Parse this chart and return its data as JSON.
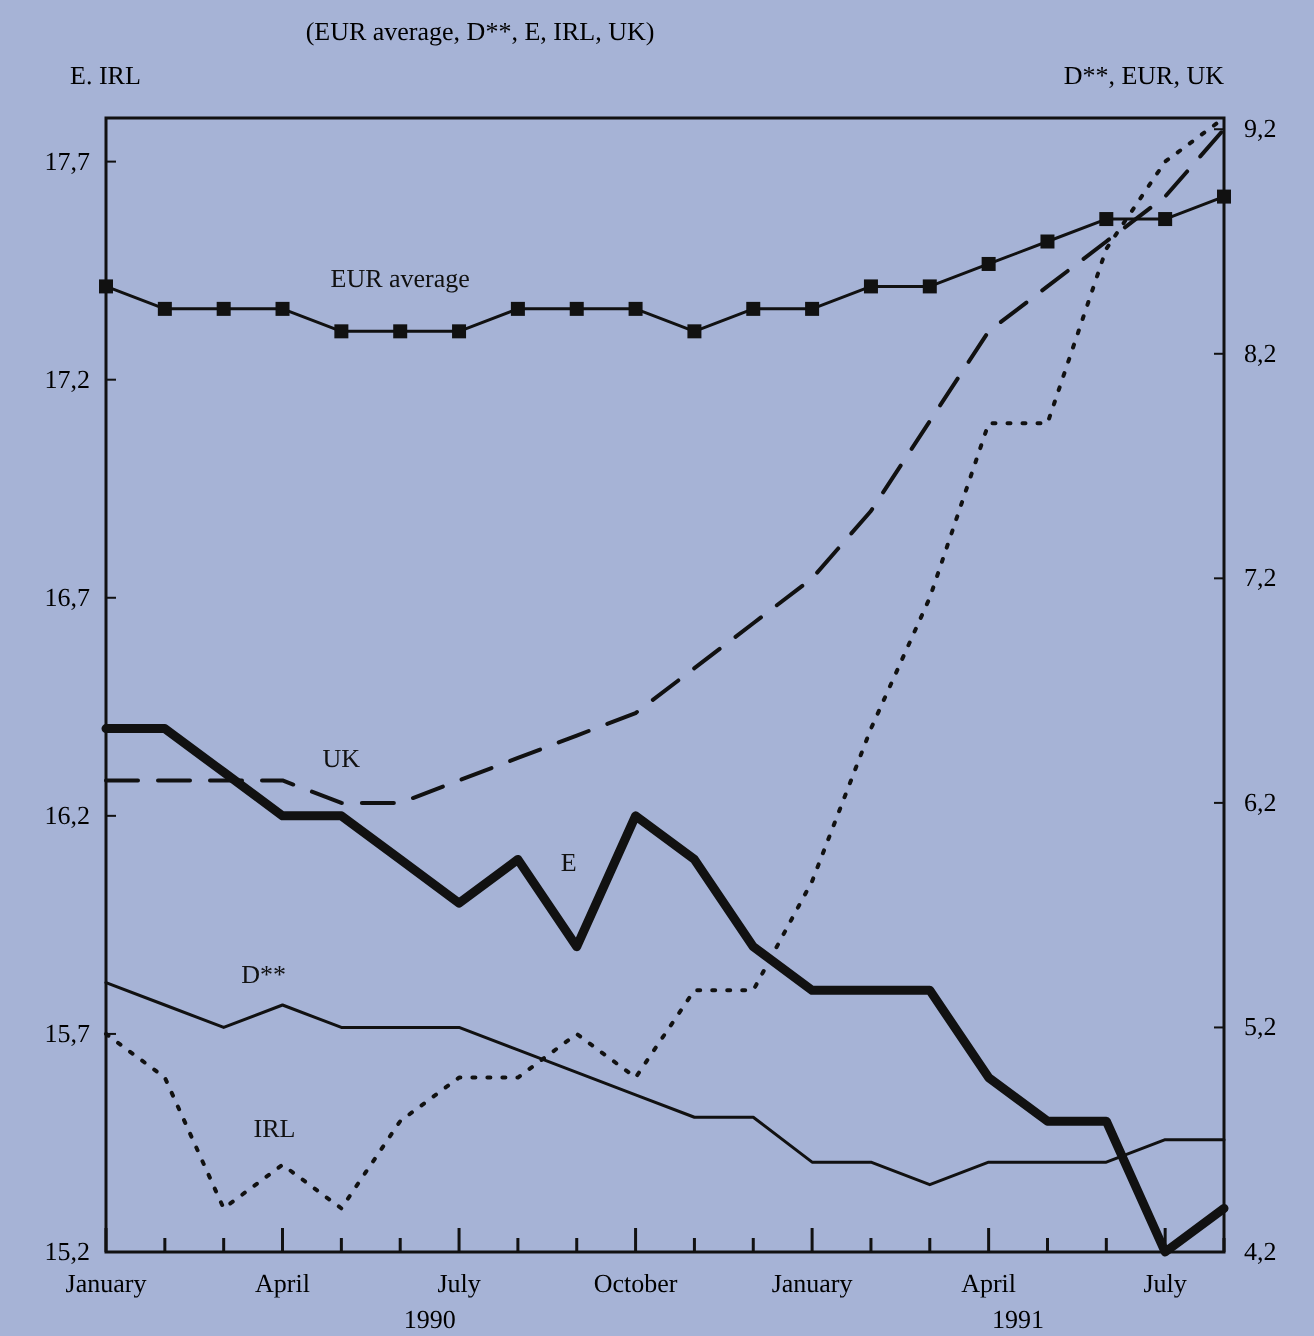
{
  "chart_data": {
    "type": "line",
    "subtitle": "(EUR average, D**, E, IRL, UK)",
    "ylabel": "E. IRL",
    "y2label": "D**, EUR, UK",
    "categories": [
      "January",
      null,
      null,
      "April",
      null,
      null,
      "July",
      null,
      null,
      "October",
      null,
      null,
      "January",
      null,
      null,
      "April",
      null,
      null,
      "July",
      null
    ],
    "ylim": [
      15.2,
      17.8
    ],
    "yticks": [
      {
        "value": 15.2,
        "label": "15,2"
      },
      {
        "value": 15.7,
        "label": "15,7"
      },
      {
        "value": 16.2,
        "label": "16,2"
      },
      {
        "value": 16.7,
        "label": "16,7"
      },
      {
        "value": 17.2,
        "label": "17,2"
      },
      {
        "value": 17.7,
        "label": "17,7"
      }
    ],
    "y2lim": [
      4.2,
      9.25
    ],
    "y2ticks": [
      {
        "value": 4.2,
        "label": "4,2"
      },
      {
        "value": 5.2,
        "label": "5,2"
      },
      {
        "value": 6.2,
        "label": "6,2"
      },
      {
        "value": 7.2,
        "label": "7,2"
      },
      {
        "value": 8.2,
        "label": "8,2"
      },
      {
        "value": 9.2,
        "label": "9,2"
      }
    ],
    "grid": false,
    "marker": "none",
    "annotations": [
      "1990",
      "1991"
    ],
    "series": [
      {
        "name": "EUR average",
        "color": "#111111",
        "axis": "y2",
        "marker": "square",
        "line_style": "solid",
        "values": [
          8.5,
          8.4,
          8.4,
          8.4,
          8.3,
          8.3,
          8.3,
          8.4,
          8.4,
          8.4,
          8.3,
          8.4,
          8.4,
          8.5,
          8.5,
          8.6,
          8.7,
          8.8,
          8.8,
          8.9
        ]
      },
      {
        "name": "UK",
        "color": "#111111",
        "axis": "y2",
        "line_style": "dashed",
        "values": [
          6.3,
          6.3,
          6.3,
          6.3,
          6.2,
          6.2,
          6.3,
          6.4,
          6.5,
          6.6,
          6.8,
          7.0,
          7.2,
          7.5,
          7.9,
          8.3,
          8.5,
          8.7,
          8.9,
          9.2
        ]
      },
      {
        "name": "E",
        "color": "#111111",
        "axis": "y",
        "line_style": "solid",
        "values": [
          16.4,
          16.4,
          16.3,
          16.2,
          16.2,
          16.1,
          16.0,
          16.1,
          15.9,
          16.2,
          16.1,
          15.9,
          15.8,
          15.8,
          15.8,
          15.6,
          15.5,
          15.5,
          15.2,
          15.3
        ]
      },
      {
        "name": "D**",
        "color": "#111111",
        "axis": "y2",
        "line_style": "solid",
        "values": [
          5.4,
          5.3,
          5.2,
          5.3,
          5.2,
          5.2,
          5.2,
          5.1,
          5.0,
          4.9,
          4.8,
          4.8,
          4.6,
          4.6,
          4.5,
          4.6,
          4.6,
          4.6,
          4.7,
          4.7
        ]
      },
      {
        "name": "IRL",
        "color": "#111111",
        "axis": "y",
        "line_style": "dotted",
        "values": [
          15.7,
          15.6,
          15.3,
          15.4,
          15.3,
          15.5,
          15.6,
          15.6,
          15.7,
          15.6,
          15.8,
          15.8,
          16.05,
          16.4,
          16.7,
          17.1,
          17.1,
          17.5,
          17.7,
          17.8
        ]
      }
    ]
  }
}
